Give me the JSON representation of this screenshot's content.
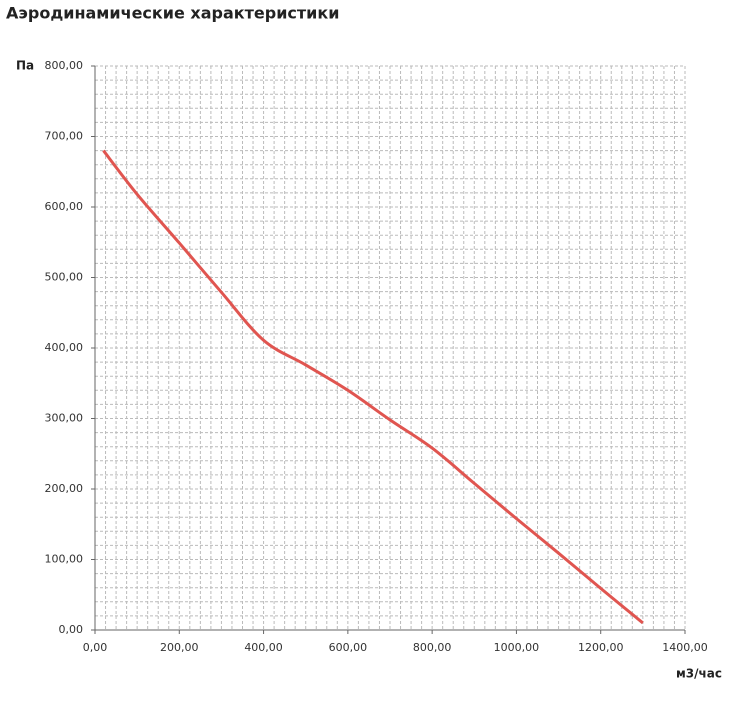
{
  "chart_data": {
    "type": "line",
    "title": "Аэродинамические характеристики",
    "ylabel": "Па",
    "xlabel": "м3/час",
    "x": [
      20,
      100,
      200,
      300,
      400,
      500,
      600,
      700,
      800,
      900,
      1000,
      1100,
      1200,
      1300
    ],
    "series": [
      {
        "color": "#e05550",
        "values": [
          680,
          618,
          549,
          479,
          411,
          376,
          340,
          298,
          258,
          208,
          158,
          109,
          59,
          10
        ]
      }
    ],
    "xlim": [
      0,
      1400
    ],
    "ylim": [
      0,
      800
    ],
    "xticks": [
      {
        "value": 0,
        "label": "0,00"
      },
      {
        "value": 200,
        "label": "200,00"
      },
      {
        "value": 400,
        "label": "400,00"
      },
      {
        "value": 600,
        "label": "600,00"
      },
      {
        "value": 800,
        "label": "800,00"
      },
      {
        "value": 1000,
        "label": "1000,00"
      },
      {
        "value": 1200,
        "label": "1200,00"
      },
      {
        "value": 1400,
        "label": "1400,00"
      }
    ],
    "yticks": [
      {
        "value": 0,
        "label": "0,00"
      },
      {
        "value": 100,
        "label": "100,00"
      },
      {
        "value": 200,
        "label": "200,00"
      },
      {
        "value": 300,
        "label": "300,00"
      },
      {
        "value": 400,
        "label": "400,00"
      },
      {
        "value": 500,
        "label": "500,00"
      },
      {
        "value": 600,
        "label": "600,00"
      },
      {
        "value": 700,
        "label": "700,00"
      },
      {
        "value": 800,
        "label": "800,00"
      }
    ],
    "xminorticks": [
      25,
      50,
      75,
      100,
      125,
      150,
      175,
      200,
      225,
      250,
      275,
      300,
      325,
      350,
      375,
      400,
      425,
      450,
      475,
      500,
      525,
      550,
      575,
      600,
      625,
      650,
      675,
      700,
      725,
      750,
      775,
      800,
      825,
      850,
      875,
      900,
      925,
      950,
      975,
      1000,
      1025,
      1050,
      1075,
      1100,
      1125,
      1150,
      1175,
      1200,
      1225,
      1250,
      1275,
      1300,
      1325,
      1350,
      1375,
      1400
    ],
    "yminorticks": [
      20,
      40,
      60,
      80,
      100,
      120,
      140,
      160,
      180,
      200,
      220,
      240,
      260,
      280,
      300,
      320,
      340,
      360,
      380,
      400,
      420,
      440,
      460,
      480,
      500,
      520,
      540,
      560,
      580,
      600,
      620,
      640,
      660,
      680,
      700,
      720,
      740,
      760,
      780,
      800
    ],
    "grid": true
  }
}
